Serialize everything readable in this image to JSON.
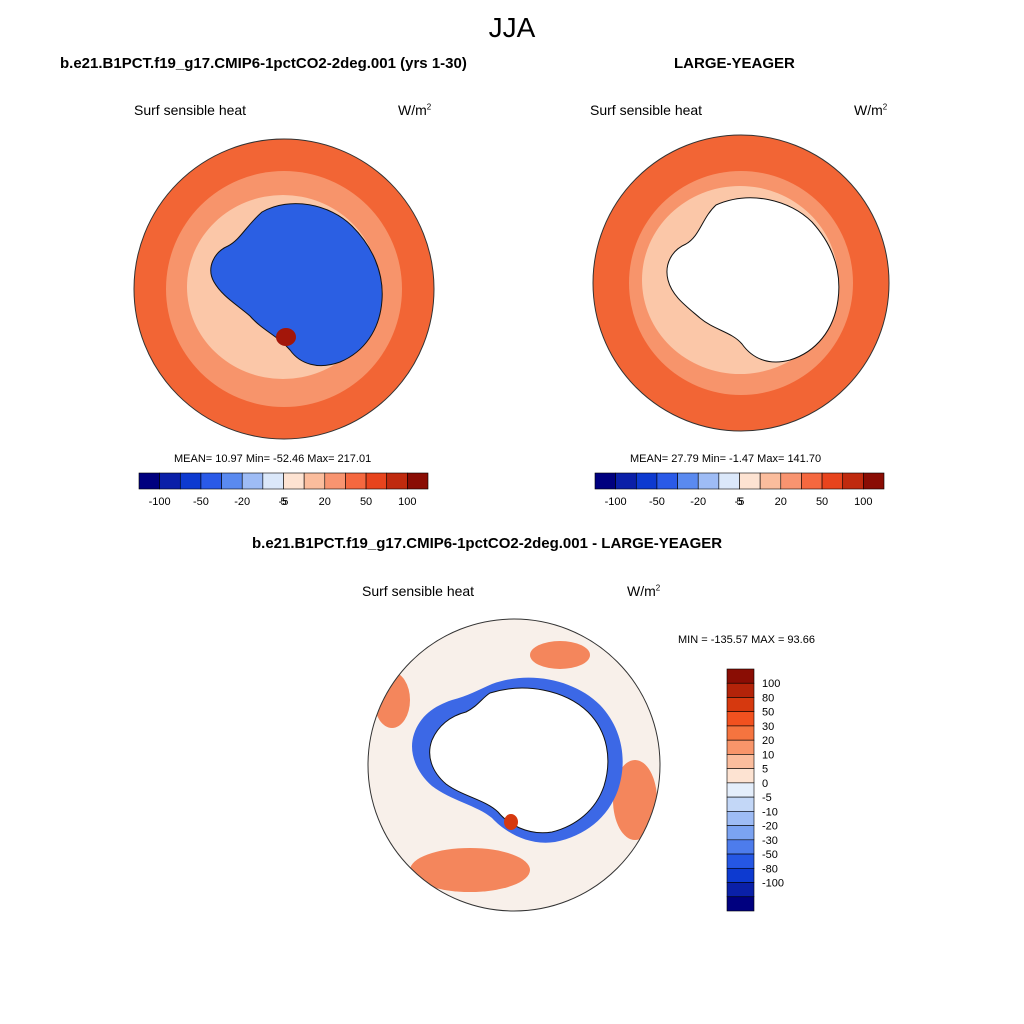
{
  "season": "JJA",
  "panels": {
    "left": {
      "title": "b.e21.B1PCT.f19_g17.CMIP6-1pctCO2-2deg.001 (yrs 1-30)",
      "variable": "Surf sensible heat",
      "units_base": "W/m",
      "units_exp": "2",
      "stats": "MEAN=  10.97  Min= -52.46  Max= 217.01"
    },
    "right": {
      "title": "LARGE-YEAGER",
      "variable": "Surf sensible heat",
      "units_base": "W/m",
      "units_exp": "2",
      "stats": "MEAN=  27.79  Min=  -1.47  Max= 141.70"
    },
    "diff": {
      "title": "b.e21.B1PCT.f19_g17.CMIP6-1pctCO2-2deg.001 - LARGE-YEAGER",
      "variable": "Surf sensible heat",
      "units_base": "W/m",
      "units_exp": "2",
      "stats": "MIN = -135.57 MAX =  93.66"
    }
  },
  "colorbar_h": {
    "colors": [
      "#00007f",
      "#0a1fa8",
      "#0d3ad0",
      "#2a5ae8",
      "#5a8af0",
      "#9ebcf5",
      "#dbe8fa",
      "#fde3d2",
      "#fbbd9d",
      "#f89470",
      "#f5683f",
      "#e8441d",
      "#c02a0e",
      "#8a0d04"
    ],
    "labels": [
      "-100",
      "-50",
      "-20",
      "-5",
      "5",
      "20",
      "50",
      "100"
    ]
  },
  "colorbar_v": {
    "colors": [
      "#8a0d04",
      "#b32309",
      "#d6390f",
      "#f2511f",
      "#f5743f",
      "#f8956a",
      "#fbbd9d",
      "#fde3d2",
      "#e4eefb",
      "#c3d7f7",
      "#9ebcf5",
      "#7ba3f2",
      "#4d7cec",
      "#2557e4",
      "#0d3ad0",
      "#0a20a8",
      "#00007f"
    ],
    "labels": [
      "100",
      "80",
      "50",
      "30",
      "20",
      "10",
      "5",
      "0",
      "-5",
      "-10",
      "-20",
      "-30",
      "-50",
      "-80",
      "-100"
    ]
  },
  "map_fill": {
    "outer_ocean": "#f26535",
    "mid_ocean": "#f7946b",
    "inner_ocean": "#fbc7a8",
    "antarctic_land": "#2b5fe3",
    "blank_land": "#ffffff",
    "diff_neutral": "#f8f0ea",
    "diff_positive": "#f4865c",
    "diff_negative": "#3c68e6"
  }
}
